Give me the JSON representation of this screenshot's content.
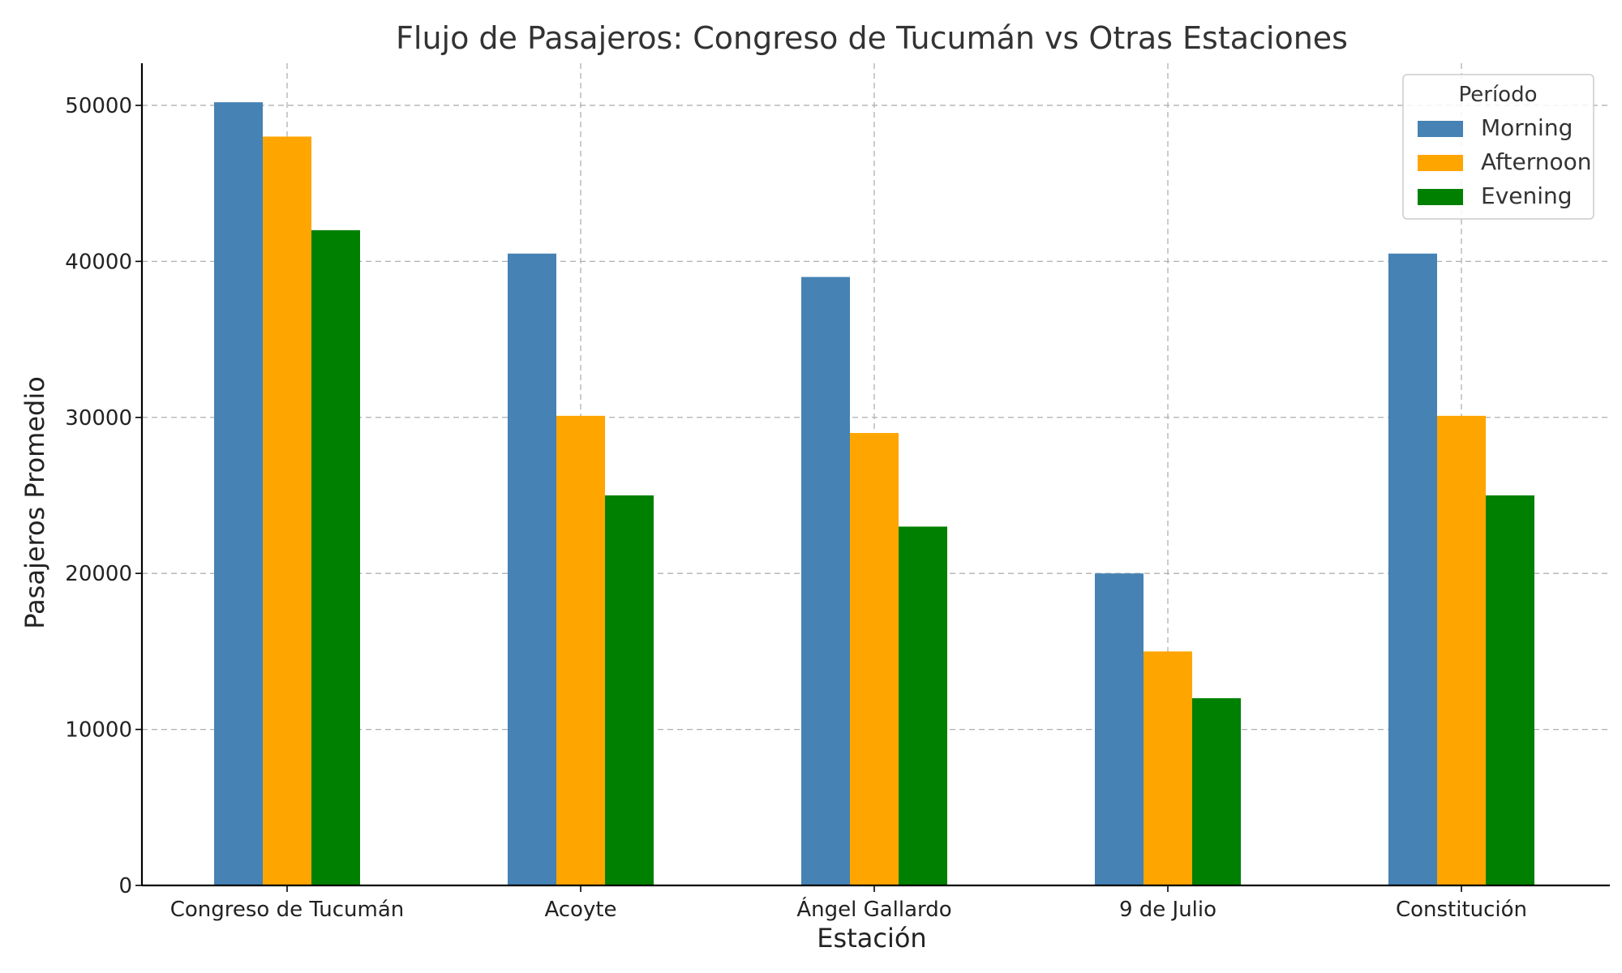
{
  "chart_data": {
    "type": "bar",
    "title": "Flujo de Pasajeros: Congreso de Tucumán vs Otras Estaciones",
    "xlabel": "Estación",
    "ylabel": "Pasajeros Promedio",
    "categories": [
      "Congreso de Tucumán",
      "Acoyte",
      "Ángel Gallardo",
      "9 de Julio",
      "Constitución"
    ],
    "series": [
      {
        "name": "Morning",
        "color": "#4682b4",
        "values": [
          50200,
          40500,
          39000,
          20000,
          40500
        ]
      },
      {
        "name": "Afternoon",
        "color": "#ffa500",
        "values": [
          48000,
          30100,
          29000,
          15000,
          30100
        ]
      },
      {
        "name": "Evening",
        "color": "#008000",
        "values": [
          42000,
          25000,
          23000,
          12000,
          25000
        ]
      }
    ],
    "ylim": [
      0,
      52700
    ],
    "yticks": [
      0,
      10000,
      20000,
      30000,
      40000,
      50000
    ],
    "ytick_labels": [
      "0",
      "10000",
      "20000",
      "30000",
      "40000",
      "50000"
    ],
    "grid": true,
    "legend": {
      "title": "Período",
      "placement": "top-right"
    }
  }
}
